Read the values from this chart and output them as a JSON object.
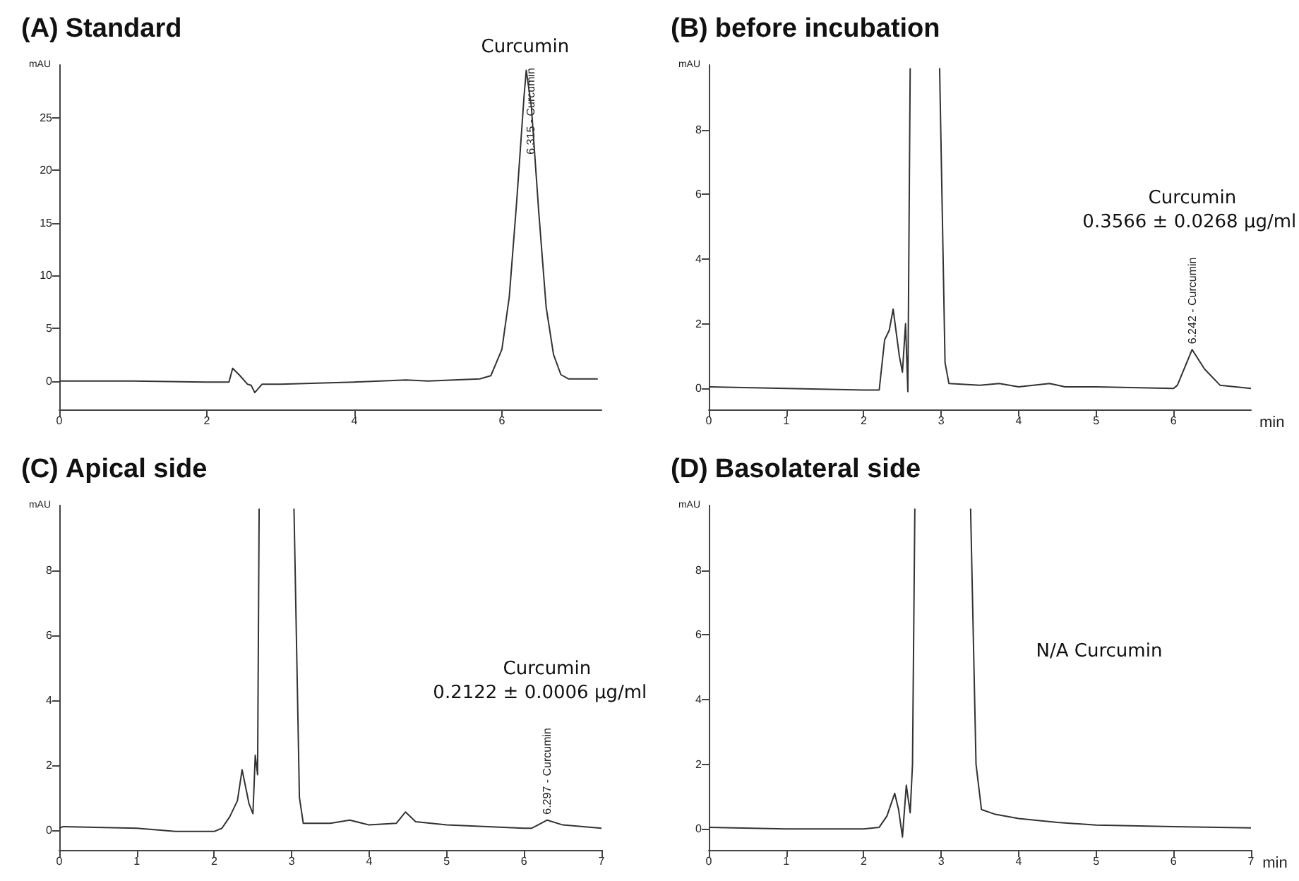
{
  "chart_data": [
    {
      "type": "line",
      "title": "(A) Standard",
      "ylabel": "mAU",
      "xlim": [
        0,
        7.35
      ],
      "xticks": [
        0,
        2,
        4,
        6
      ],
      "ylim": [
        -2.7,
        30
      ],
      "yticks": [
        0,
        5,
        10,
        15,
        20,
        25
      ],
      "series": [
        {
          "color": "#333333",
          "x": [
            0,
            1,
            2,
            2.3,
            2.35,
            2.45,
            2.55,
            2.6,
            2.65,
            2.75,
            3,
            4,
            4.7,
            5,
            5.7,
            5.85,
            6.0,
            6.1,
            6.2,
            6.3,
            6.33,
            6.4,
            6.5,
            6.6,
            6.7,
            6.8,
            6.9,
            7.3
          ],
          "values": [
            0,
            0,
            -0.1,
            -0.1,
            1.2,
            0.5,
            -0.3,
            -0.4,
            -1.1,
            -0.3,
            -0.3,
            -0.1,
            0.1,
            0,
            0.2,
            0.5,
            3,
            8,
            17,
            27,
            29.5,
            26,
            16,
            7,
            2.5,
            0.6,
            0.2,
            0.2
          ]
        }
      ],
      "annotations": [
        {
          "text": "6.315 - Curcumin",
          "x": 6.315,
          "y": 29.5
        },
        "Curcumin"
      ]
    },
    {
      "type": "line",
      "title": "(B) before incubation",
      "ylabel": "mAU",
      "xlabel": "min",
      "xlim": [
        0,
        7
      ],
      "xticks": [
        0,
        1,
        2,
        3,
        4,
        5,
        6
      ],
      "ylim": [
        -0.65,
        10
      ],
      "yticks": [
        0,
        2,
        4,
        6,
        8
      ],
      "series": [
        {
          "color": "#333333",
          "x": [
            0,
            1,
            2,
            2.2,
            2.27,
            2.33,
            2.38,
            2.46,
            2.5,
            2.54,
            2.57,
            2.6,
            2.8,
            2.98,
            3.05,
            3.1,
            3.5,
            3.75,
            4.0,
            4.4,
            4.6,
            5,
            6.0,
            6.05,
            6.24,
            6.4,
            6.6,
            7
          ],
          "values": [
            0.05,
            0,
            -0.05,
            -0.05,
            1.5,
            1.8,
            2.45,
            1.0,
            0.5,
            2.0,
            -0.1,
            9.9,
            null,
            9.9,
            0.8,
            0.15,
            0.1,
            0.15,
            0.05,
            0.15,
            0.05,
            0.05,
            0,
            0.1,
            1.2,
            0.6,
            0.1,
            0
          ]
        }
      ],
      "annotations": [
        {
          "text": "6.242 - Curcumin",
          "x": 6.242,
          "y": 1.2
        },
        "Curcumin",
        "0.3566 ± 0.0268 μg/ml"
      ]
    },
    {
      "type": "line",
      "title": "(C) Apical side",
      "ylabel": "mAU",
      "xlim": [
        0,
        7
      ],
      "xticks": [
        0,
        1,
        2,
        3,
        4,
        5,
        6,
        7
      ],
      "ylim": [
        -0.62,
        10
      ],
      "yticks": [
        0,
        2,
        4,
        6,
        8
      ],
      "series": [
        {
          "color": "#333333",
          "x": [
            0,
            0.05,
            1,
            1.5,
            2,
            2.1,
            2.2,
            2.3,
            2.36,
            2.45,
            2.5,
            2.53,
            2.56,
            2.58,
            2.8,
            3.03,
            3.1,
            3.15,
            3.5,
            3.75,
            4.0,
            4.35,
            4.47,
            4.6,
            5,
            6,
            6.1,
            6.3,
            6.5,
            7
          ],
          "values": [
            0.05,
            0.1,
            0.05,
            -0.05,
            -0.05,
            0.05,
            0.4,
            0.9,
            1.85,
            0.8,
            0.5,
            2.3,
            1.7,
            9.9,
            null,
            9.9,
            1.0,
            0.2,
            0.2,
            0.3,
            0.15,
            0.2,
            0.55,
            0.25,
            0.15,
            0.05,
            0.05,
            0.3,
            0.15,
            0.05
          ]
        }
      ],
      "annotations": [
        {
          "text": "6.297 - Curcumin",
          "x": 6.297,
          "y": 0.3
        },
        "Curcumin",
        "0.2122 ± 0.0006 μg/ml"
      ]
    },
    {
      "type": "line",
      "title": "(D) Basolateral side",
      "ylabel": "mAU",
      "xlabel": "min",
      "xlim": [
        0,
        7
      ],
      "xticks": [
        0,
        1,
        2,
        3,
        4,
        5,
        6,
        7
      ],
      "ylim": [
        -0.65,
        10
      ],
      "yticks": [
        0,
        2,
        4,
        6,
        8
      ],
      "series": [
        {
          "color": "#333333",
          "x": [
            0,
            1,
            2,
            2.2,
            2.3,
            2.4,
            2.45,
            2.5,
            2.55,
            2.6,
            2.63,
            2.66,
            3.0,
            3.38,
            3.45,
            3.52,
            3.7,
            4,
            4.5,
            5,
            6,
            7
          ],
          "values": [
            0.05,
            0,
            0,
            0.05,
            0.4,
            1.1,
            0.6,
            -0.25,
            1.35,
            0.5,
            2,
            9.9,
            null,
            9.9,
            2,
            0.6,
            0.45,
            0.32,
            0.2,
            0.12,
            0.07,
            0.03
          ]
        }
      ],
      "annotations": [
        "N/A Curcumin"
      ]
    }
  ]
}
